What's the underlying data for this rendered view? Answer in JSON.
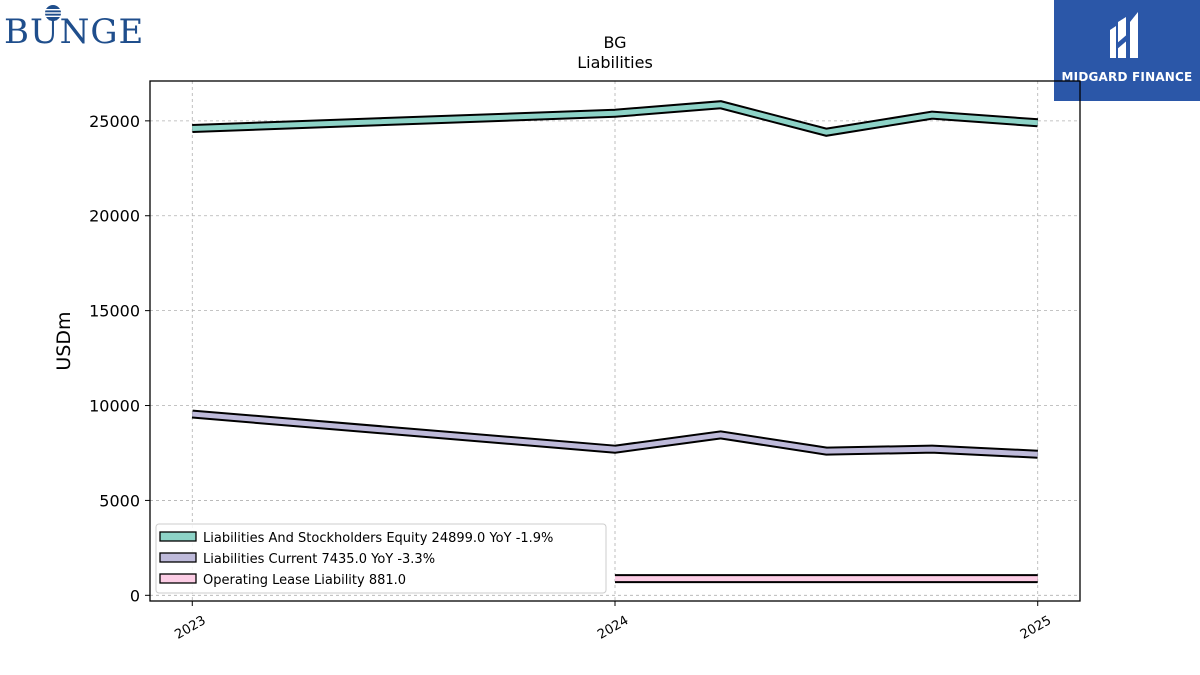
{
  "logos": {
    "left_text": "BUNGE",
    "right_text": "MIDGARD FINANCE"
  },
  "chart_data": {
    "type": "line",
    "title": "BG",
    "subtitle": "Liabilities",
    "xlabel": "",
    "ylabel": "USDm",
    "xlim": [
      2022.9,
      2025.1
    ],
    "ylim": [
      -300,
      27100
    ],
    "x_ticks": [
      2023,
      2024,
      2025
    ],
    "x_tick_labels": [
      "2023",
      "2024",
      "2025"
    ],
    "y_ticks": [
      0,
      5000,
      10000,
      15000,
      20000,
      25000
    ],
    "y_tick_labels": [
      "0",
      "5000",
      "10000",
      "15000",
      "20000",
      "25000"
    ],
    "grid": true,
    "legend_position": "lower-left",
    "series": [
      {
        "name": "Liabilities And Stockholders Equity  24899.0 YoY -1.9%",
        "color": "#8dd3c7",
        "x": [
          2023.0,
          2024.0,
          2024.25,
          2024.5,
          2024.75,
          2025.0
        ],
        "y": [
          24600,
          25400,
          25850,
          24400,
          25300,
          24899
        ]
      },
      {
        "name": "Liabilities Current  7435.0 YoY -3.3%",
        "color": "#bebada",
        "x": [
          2023.0,
          2024.0,
          2024.25,
          2024.5,
          2024.75,
          2025.0
        ],
        "y": [
          9550,
          7700,
          8450,
          7600,
          7700,
          7435
        ]
      },
      {
        "name": "Operating Lease Liability  881.0",
        "color": "#fccde5",
        "x": [
          2024.0,
          2024.25,
          2024.5,
          2024.75,
          2025.0
        ],
        "y": [
          881,
          881,
          881,
          881,
          881
        ]
      }
    ]
  }
}
